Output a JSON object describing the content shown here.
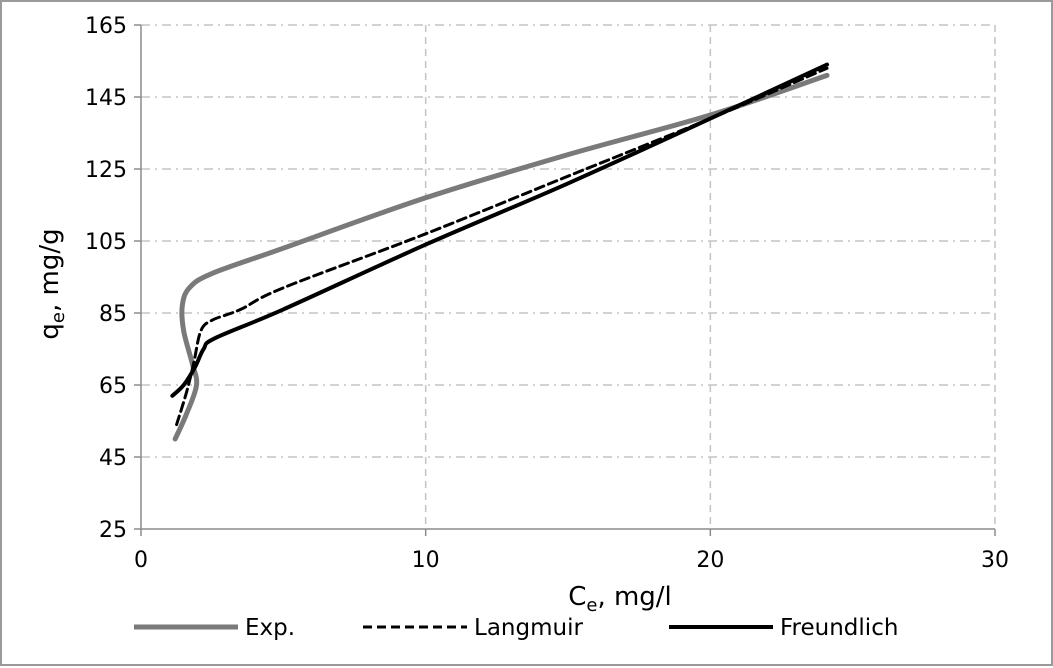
{
  "chart_data": {
    "type": "line",
    "title": "",
    "xlabel": "C",
    "xlabel_sub": "e",
    "xlabel_unit": ", mg/l",
    "ylabel": "q",
    "ylabel_sub": "e",
    "ylabel_unit": ", mg/g",
    "xlim": [
      0,
      30
    ],
    "ylim": [
      25,
      165
    ],
    "xticks": [
      0,
      10,
      20,
      30
    ],
    "yticks": [
      25,
      45,
      65,
      85,
      105,
      125,
      145,
      165
    ],
    "grid": true,
    "legend_position": "bottom",
    "series": [
      {
        "name": "Exp.",
        "color": "#7a7a7a",
        "dash": "solid",
        "points": [
          [
            1.2,
            50
          ],
          [
            1.6,
            57
          ],
          [
            1.95,
            65
          ],
          [
            1.8,
            71
          ],
          [
            1.5,
            80
          ],
          [
            1.45,
            87
          ],
          [
            1.7,
            92
          ],
          [
            2.5,
            96
          ],
          [
            5,
            103
          ],
          [
            10,
            117
          ],
          [
            15,
            129
          ],
          [
            20,
            140
          ],
          [
            24.1,
            151
          ]
        ]
      },
      {
        "name": "Langmuir",
        "color": "#000000",
        "dash": "dashed",
        "points": [
          [
            1.25,
            54
          ],
          [
            1.6,
            63
          ],
          [
            1.85,
            71
          ],
          [
            2.1,
            80
          ],
          [
            2.5,
            83
          ],
          [
            3.5,
            86
          ],
          [
            5,
            92
          ],
          [
            10,
            107
          ],
          [
            15,
            123
          ],
          [
            20,
            139
          ],
          [
            24.1,
            153
          ]
        ]
      },
      {
        "name": "Freundlich",
        "color": "#000000",
        "dash": "solid",
        "points": [
          [
            1.1,
            62
          ],
          [
            1.5,
            65
          ],
          [
            1.9,
            70
          ],
          [
            2.2,
            75
          ],
          [
            2.6,
            78
          ],
          [
            5,
            86
          ],
          [
            10,
            104
          ],
          [
            15,
            121
          ],
          [
            20,
            139
          ],
          [
            24.1,
            154
          ]
        ]
      }
    ]
  }
}
